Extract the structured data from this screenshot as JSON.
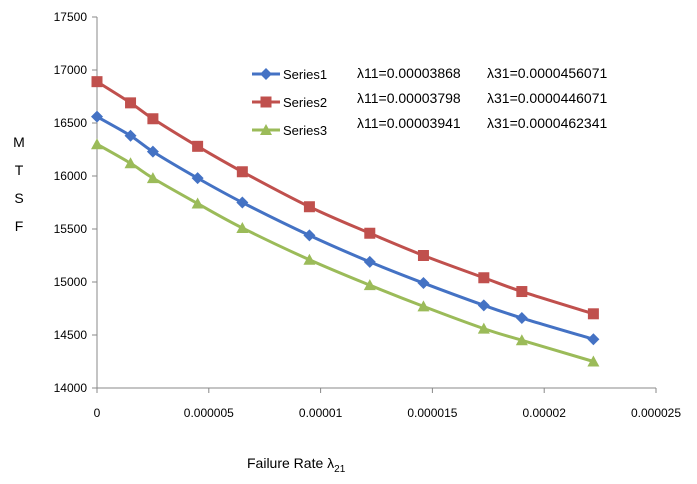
{
  "chart_data": {
    "type": "line",
    "title": "",
    "xlabel": "Failure Rate λ",
    "xlabel_subscript": "21",
    "ylabel_letters": [
      "M",
      "T",
      "S",
      "F"
    ],
    "xlim": [
      0,
      2.5e-05
    ],
    "ylim": [
      14000,
      17500
    ],
    "x_ticks": [
      0,
      5e-06,
      1e-05,
      1.5e-05,
      2e-05,
      2.5e-05
    ],
    "x_tick_labels": [
      "0",
      "0.000005",
      "0.00001",
      "0.000015",
      "0.00002",
      "0.000025"
    ],
    "y_ticks": [
      14000,
      14500,
      15000,
      15500,
      16000,
      16500,
      17000,
      17500
    ],
    "y_tick_labels": [
      "14000",
      "14500",
      "15000",
      "15500",
      "16000",
      "16500",
      "17000",
      "17500"
    ],
    "grid": false,
    "legend_position": "top-center",
    "x": [
      0,
      1.5e-06,
      2.5e-06,
      4.5e-06,
      6.5e-06,
      9.5e-06,
      1.22e-05,
      1.46e-05,
      1.73e-05,
      1.9e-05,
      2.22e-05
    ],
    "series": [
      {
        "name": "Series1",
        "color": "#4472c4",
        "marker": "diamond",
        "values": [
          16560,
          16380,
          16230,
          15980,
          15750,
          15440,
          15190,
          14990,
          14780,
          14660,
          14460
        ]
      },
      {
        "name": "Series2",
        "color": "#c0504d",
        "marker": "square",
        "values": [
          16890,
          16690,
          16540,
          16280,
          16040,
          15710,
          15460,
          15250,
          15040,
          14910,
          14700
        ]
      },
      {
        "name": "Series3",
        "color": "#9bbb59",
        "marker": "triangle",
        "values": [
          16300,
          16120,
          15980,
          15740,
          15510,
          15210,
          14970,
          14770,
          14560,
          14450,
          14250
        ]
      }
    ],
    "annotations": [
      {
        "lambda11": "λ11=0.00003868",
        "lambda31": "λ31=0.0000456071"
      },
      {
        "lambda11": "λ11=0.00003798",
        "lambda31": "λ31=0.0000446071"
      },
      {
        "lambda11": "λ11=0.00003941",
        "lambda31": "λ31=0.0000462341"
      }
    ]
  }
}
